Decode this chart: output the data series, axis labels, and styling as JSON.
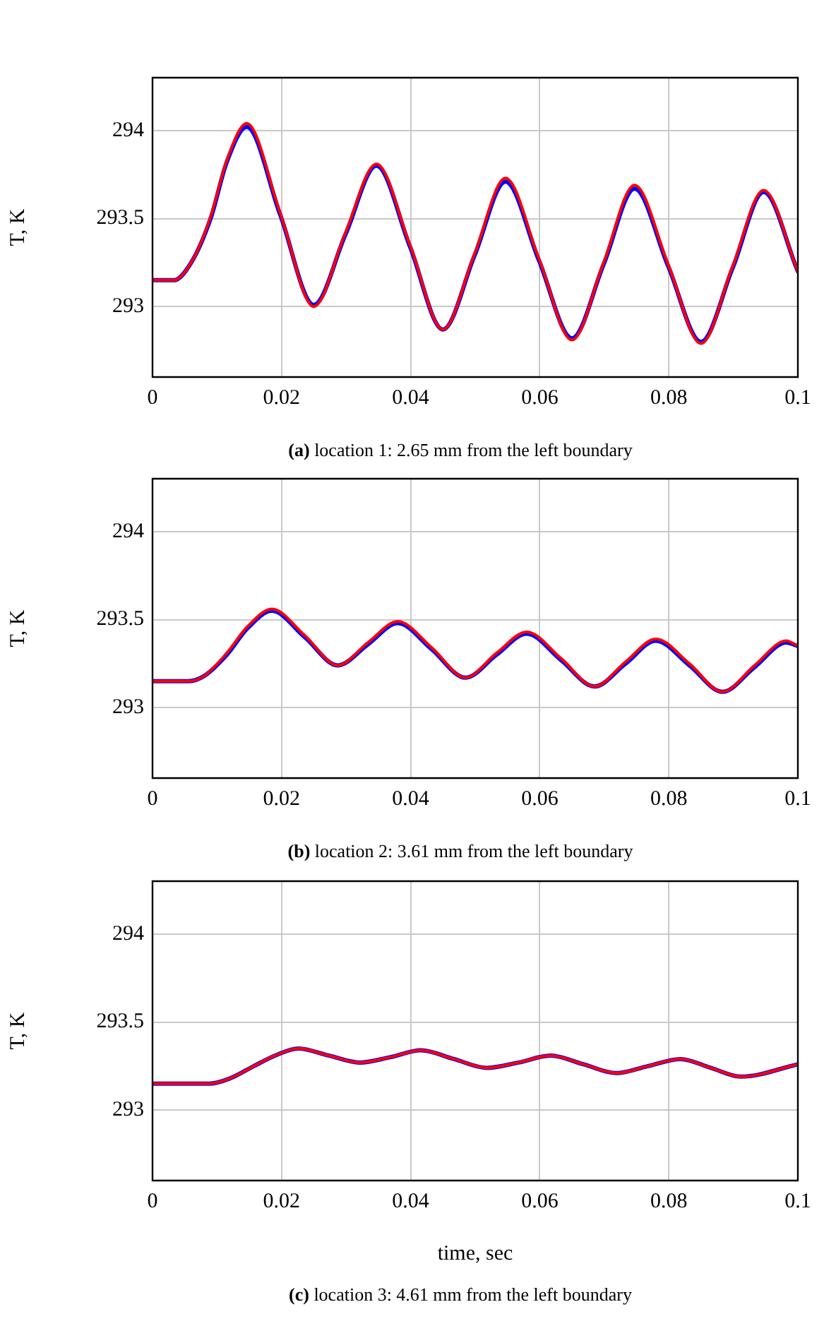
{
  "chart_data": [
    {
      "type": "line",
      "xlim": [
        0,
        0.1
      ],
      "xticks": [
        0,
        0.02,
        0.04,
        0.06,
        0.08,
        0.1
      ],
      "ylim": [
        292.6,
        294.3
      ],
      "yticks": [
        293,
        293.5,
        294
      ],
      "ylabel": "T, K",
      "grid": true,
      "legend": false,
      "marker": "none",
      "line_style": "solid",
      "annotations": [
        "(a) location 1: 2.65 mm from the left boundary"
      ],
      "series": [
        {
          "color": "#0000ff",
          "x": [
            0,
            0.0033,
            0.006,
            0.009,
            0.0115,
            0.0146,
            0.0198,
            0.025,
            0.0299,
            0.0347,
            0.0399,
            0.045,
            0.0499,
            0.0547,
            0.0599,
            0.065,
            0.0699,
            0.0747,
            0.0799,
            0.085,
            0.0899,
            0.0947,
            0.1
          ],
          "values": [
            293.15,
            293.15,
            293.25,
            293.5,
            293.82,
            294.02,
            293.52,
            293.01,
            293.41,
            293.8,
            293.34,
            292.87,
            293.29,
            293.71,
            293.26,
            292.82,
            293.24,
            293.67,
            293.23,
            292.8,
            293.22,
            293.65,
            293.2
          ]
        },
        {
          "color": "#ff0000",
          "x": [
            0,
            0.0033,
            0.006,
            0.009,
            0.0115,
            0.0146,
            0.0198,
            0.025,
            0.0299,
            0.0347,
            0.0399,
            0.045,
            0.0499,
            0.0547,
            0.0599,
            0.065,
            0.0699,
            0.0747,
            0.0799,
            0.085,
            0.0899,
            0.0947,
            0.1
          ],
          "values": [
            293.15,
            293.15,
            293.25,
            293.51,
            293.83,
            294.04,
            293.53,
            293.0,
            293.42,
            293.81,
            293.35,
            292.87,
            293.3,
            293.73,
            293.27,
            292.81,
            293.25,
            293.69,
            293.24,
            292.79,
            293.23,
            293.66,
            293.2
          ]
        }
      ]
    },
    {
      "type": "line",
      "xlim": [
        0,
        0.1
      ],
      "xticks": [
        0,
        0.02,
        0.04,
        0.06,
        0.08,
        0.1
      ],
      "ylim": [
        292.6,
        294.3
      ],
      "yticks": [
        293,
        293.5,
        294
      ],
      "ylabel": "T, K",
      "grid": true,
      "legend": false,
      "marker": "none",
      "line_style": "solid",
      "annotations": [
        "(b) location 2: 3.61 mm from the left boundary"
      ],
      "series": [
        {
          "color": "#0000ff",
          "x": [
            0,
            0.0055,
            0.008,
            0.0115,
            0.0147,
            0.0185,
            0.0236,
            0.0287,
            0.0334,
            0.038,
            0.0433,
            0.0485,
            0.0533,
            0.058,
            0.0633,
            0.0685,
            0.0733,
            0.078,
            0.0832,
            0.0883,
            0.0933,
            0.0982,
            0.1
          ],
          "values": [
            293.15,
            293.15,
            293.18,
            293.3,
            293.45,
            293.55,
            293.4,
            293.24,
            293.36,
            293.48,
            293.33,
            293.17,
            293.3,
            293.42,
            293.27,
            293.12,
            293.25,
            293.38,
            293.24,
            293.09,
            293.23,
            293.37,
            293.35
          ]
        },
        {
          "color": "#ff0000",
          "x": [
            0,
            0.0055,
            0.008,
            0.0115,
            0.0147,
            0.0185,
            0.0236,
            0.0287,
            0.0334,
            0.038,
            0.0433,
            0.0485,
            0.0533,
            0.058,
            0.0633,
            0.0685,
            0.0733,
            0.078,
            0.0832,
            0.0883,
            0.0933,
            0.0982,
            0.1
          ],
          "values": [
            293.15,
            293.15,
            293.18,
            293.31,
            293.46,
            293.56,
            293.41,
            293.24,
            293.37,
            293.49,
            293.34,
            293.17,
            293.31,
            293.43,
            293.28,
            293.12,
            293.26,
            293.39,
            293.25,
            293.09,
            293.24,
            293.38,
            293.35
          ]
        }
      ]
    },
    {
      "type": "line",
      "xlim": [
        0,
        0.1
      ],
      "xticks": [
        0,
        0.02,
        0.04,
        0.06,
        0.08,
        0.1
      ],
      "ylim": [
        292.6,
        294.3
      ],
      "yticks": [
        293,
        293.5,
        294
      ],
      "ylabel": "T, K",
      "xlabel": "time, sec",
      "grid": true,
      "legend": false,
      "marker": "none",
      "line_style": "solid",
      "annotations": [
        "(c) location 3: 4.61 mm from the left boundary"
      ],
      "series": [
        {
          "color": "#0000ff",
          "x": [
            0,
            0.0088,
            0.012,
            0.0157,
            0.019,
            0.0226,
            0.0273,
            0.0321,
            0.0368,
            0.0416,
            0.0467,
            0.0518,
            0.0567,
            0.0617,
            0.0668,
            0.0719,
            0.0768,
            0.0818,
            0.0865,
            0.0912,
            0.1
          ],
          "values": [
            293.15,
            293.15,
            293.18,
            293.25,
            293.31,
            293.35,
            293.31,
            293.27,
            293.3,
            293.34,
            293.29,
            293.24,
            293.27,
            293.31,
            293.26,
            293.21,
            293.25,
            293.29,
            293.24,
            293.19,
            293.26
          ]
        },
        {
          "color": "#ff0000",
          "x": [
            0,
            0.0088,
            0.012,
            0.0157,
            0.019,
            0.0226,
            0.0273,
            0.0321,
            0.0368,
            0.0416,
            0.0467,
            0.0518,
            0.0567,
            0.0617,
            0.0668,
            0.0719,
            0.0768,
            0.0818,
            0.0865,
            0.0912,
            0.1
          ],
          "values": [
            293.15,
            293.15,
            293.18,
            293.25,
            293.31,
            293.35,
            293.31,
            293.27,
            293.3,
            293.34,
            293.29,
            293.24,
            293.27,
            293.31,
            293.26,
            293.21,
            293.25,
            293.29,
            293.24,
            293.19,
            293.26
          ]
        }
      ]
    }
  ]
}
